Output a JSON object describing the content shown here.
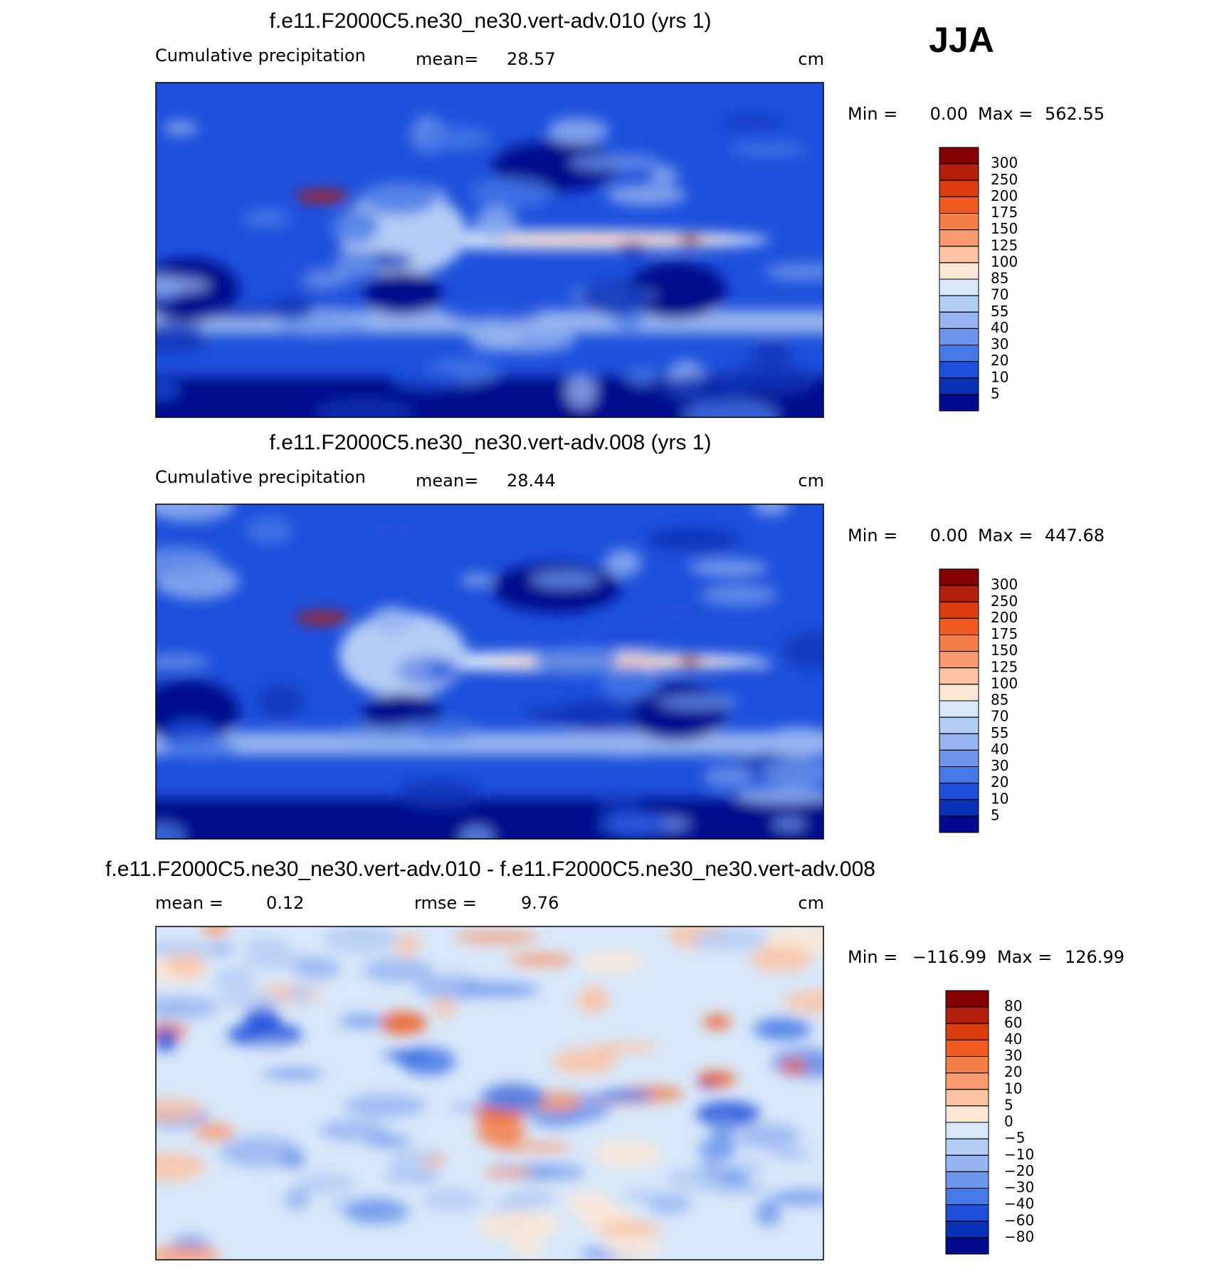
{
  "header": {
    "season": "JJA"
  },
  "panels": [
    {
      "title": "f.e11.F2000C5.ne30_ne30.vert-adv.010 (yrs 1)",
      "variable": "Cumulative precipitation",
      "mean_label": "mean=",
      "mean": 28.57,
      "units": "cm",
      "min_label": "Min =",
      "min": {
        "value": 0,
        "label": "0.00"
      },
      "max_label": "Max =",
      "max": 562.55,
      "colorbar": {
        "levels": [
          300,
          250,
          200,
          175,
          150,
          125,
          100,
          85,
          70,
          55,
          40,
          30,
          20,
          10,
          5
        ],
        "colors": [
          "#850000",
          "#b41e0a",
          "#dc3c0f",
          "#f05a1e",
          "#f57d46",
          "#fa9b6e",
          "#fcc3a5",
          "#fde8d6",
          "#d8e8fa",
          "#b4cdf5",
          "#96b4f0",
          "#6e96eb",
          "#4678e6",
          "#1e50dc",
          "#0a32b4",
          "#000a8c"
        ]
      }
    },
    {
      "title": "f.e11.F2000C5.ne30_ne30.vert-adv.008 (yrs 1)",
      "variable": "Cumulative precipitation",
      "mean_label": "mean=",
      "mean": 28.44,
      "units": "cm",
      "min_label": "Min =",
      "min": {
        "value": 0,
        "label": "0.00"
      },
      "max_label": "Max =",
      "max": 447.68,
      "colorbar": {
        "levels": [
          300,
          250,
          200,
          175,
          150,
          125,
          100,
          85,
          70,
          55,
          40,
          30,
          20,
          10,
          5
        ],
        "colors": [
          "#850000",
          "#b41e0a",
          "#dc3c0f",
          "#f05a1e",
          "#f57d46",
          "#fa9b6e",
          "#fcc3a5",
          "#fde8d6",
          "#d8e8fa",
          "#b4cdf5",
          "#96b4f0",
          "#6e96eb",
          "#4678e6",
          "#1e50dc",
          "#0a32b4",
          "#000a8c"
        ]
      }
    },
    {
      "title": "f.e11.F2000C5.ne30_ne30.vert-adv.010 - f.e11.F2000C5.ne30_ne30.vert-adv.008",
      "mean_label": "mean =",
      "mean": 0.12,
      "rmse_label": "rmse =",
      "rmse": 9.76,
      "units": "cm",
      "min_label": "Min =",
      "min": {
        "value": -116.99,
        "label": "−116.99"
      },
      "max_label": "Max =",
      "max": 126.99,
      "colorbar": {
        "levels": [
          80,
          60,
          40,
          30,
          20,
          10,
          5,
          0,
          {
            "value": -5,
            "label": "−5"
          },
          {
            "value": -10,
            "label": "−10"
          },
          {
            "value": -20,
            "label": "−20"
          },
          {
            "value": -30,
            "label": "−30"
          },
          {
            "value": -40,
            "label": "−40"
          },
          {
            "value": -60,
            "label": "−60"
          },
          {
            "value": -80,
            "label": "−80"
          }
        ],
        "colors": [
          "#850000",
          "#b41e0a",
          "#dc3c0f",
          "#f05a1e",
          "#f57d46",
          "#fa9b6e",
          "#fcc3a5",
          "#fde8d6",
          "#d8e8fa",
          "#b4cdf5",
          "#96b4f0",
          "#6e96eb",
          "#4678e6",
          "#1e50dc",
          "#0a32b4",
          "#000a8c"
        ]
      }
    }
  ]
}
